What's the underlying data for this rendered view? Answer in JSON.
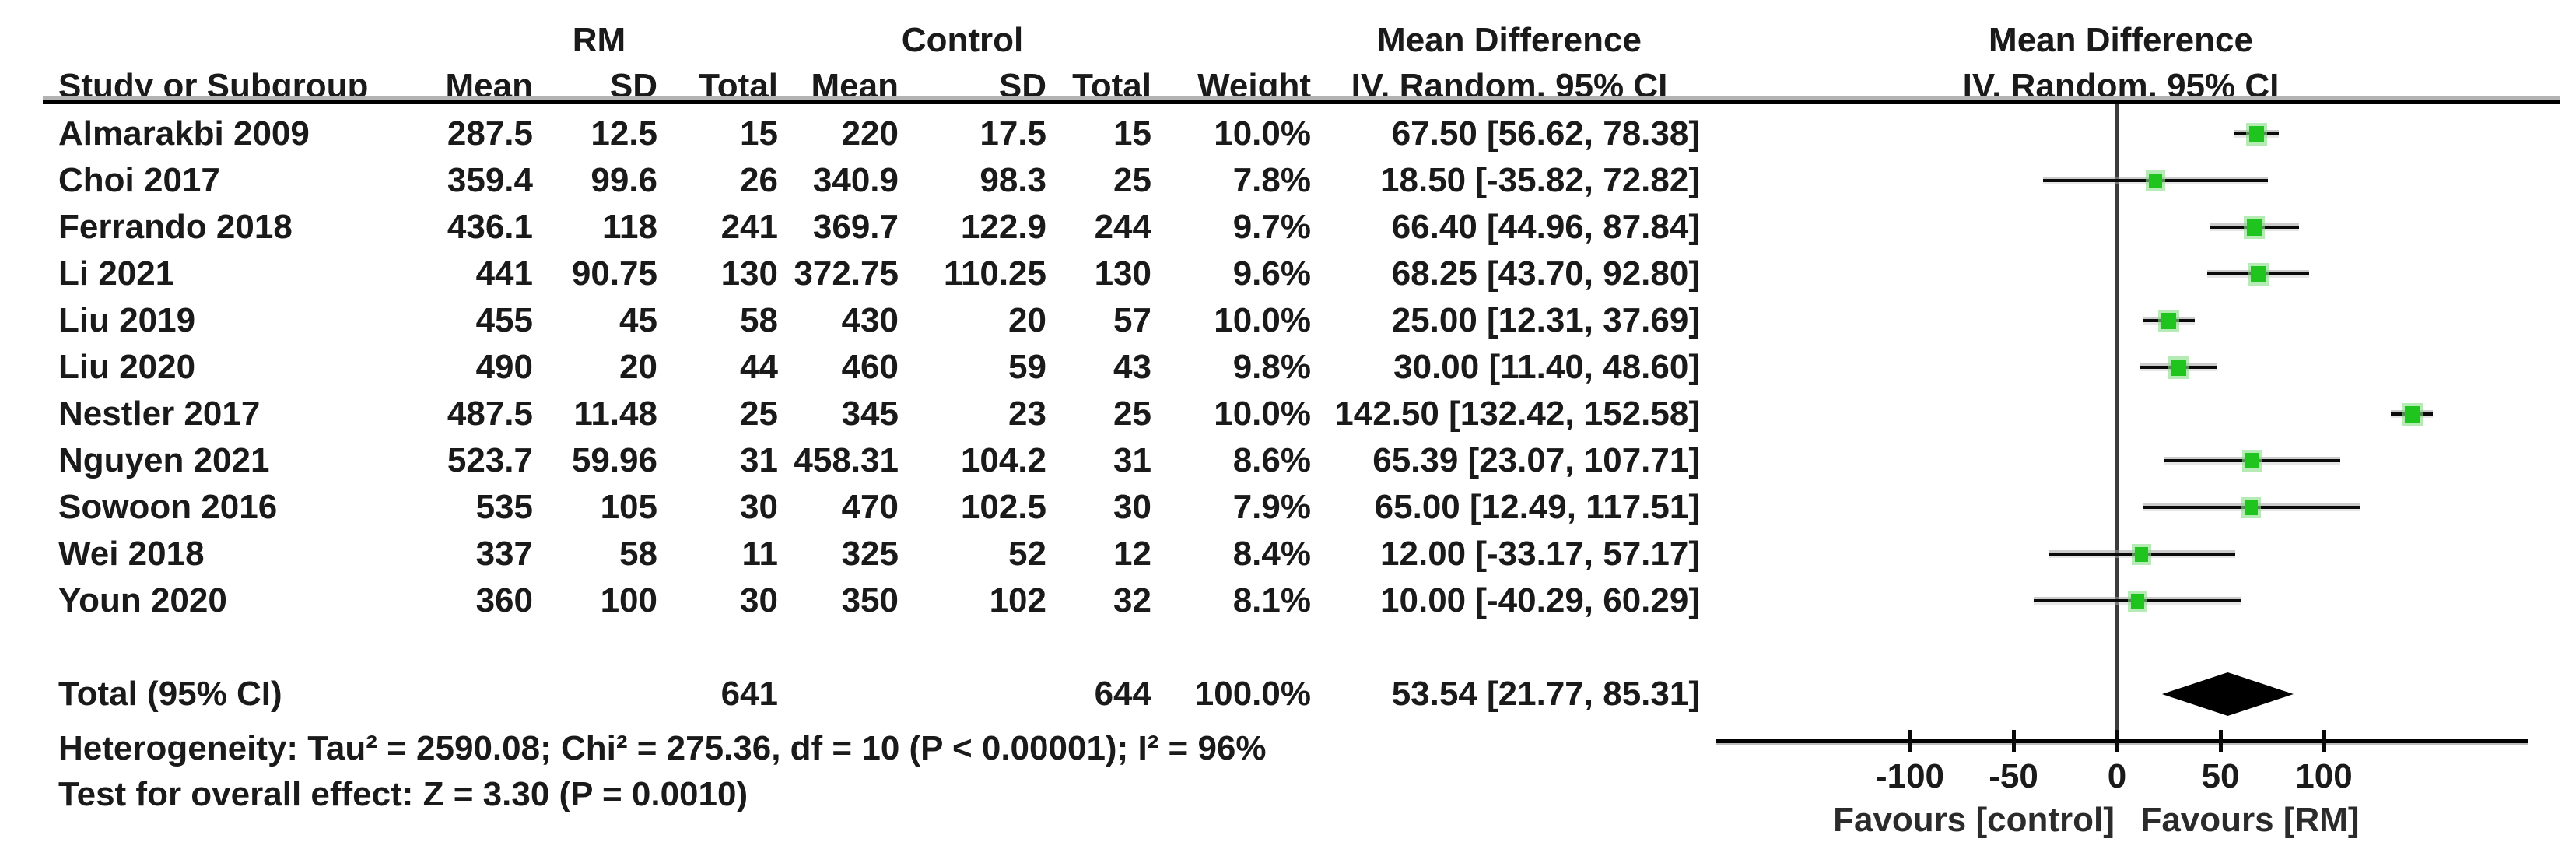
{
  "header": {
    "group1_label": "RM",
    "group2_label": "Control",
    "study_col": "Study or Subgroup",
    "mean_col": "Mean",
    "sd_col": "SD",
    "total_col": "Total",
    "weight_col": "Weight",
    "effect_col_title": "Mean Difference",
    "effect_col_subtitle": "IV, Random, 95% CI",
    "plot_col_title": "Mean Difference",
    "plot_col_subtitle": "IV, Random, 95% CI"
  },
  "footer": {
    "heterogeneity": "Heterogeneity: Tau² = 2590.08; Chi² = 275.36, df = 10 (P < 0.00001); I² = 96%",
    "overall_effect": "Test for overall effect: Z = 3.30 (P = 0.0010)"
  },
  "chart_data": {
    "type": "forest",
    "effect_measure": "Mean Difference",
    "model": "IV, Random, 95% CI",
    "studies": [
      {
        "name": "Almarakbi 2009",
        "rm_mean": "287.5",
        "rm_sd": "12.5",
        "rm_total": "15",
        "c_mean": "220",
        "c_sd": "17.5",
        "c_total": "15",
        "weight": "10.0%",
        "weight_pct": 10.0,
        "ci_text": "67.50 [56.62, 78.38]",
        "est": 67.5,
        "lo": 56.62,
        "hi": 78.38
      },
      {
        "name": "Choi 2017",
        "rm_mean": "359.4",
        "rm_sd": "99.6",
        "rm_total": "26",
        "c_mean": "340.9",
        "c_sd": "98.3",
        "c_total": "25",
        "weight": "7.8%",
        "weight_pct": 7.8,
        "ci_text": "18.50 [-35.82, 72.82]",
        "est": 18.5,
        "lo": -35.82,
        "hi": 72.82
      },
      {
        "name": "Ferrando 2018",
        "rm_mean": "436.1",
        "rm_sd": "118",
        "rm_total": "241",
        "c_mean": "369.7",
        "c_sd": "122.9",
        "c_total": "244",
        "weight": "9.7%",
        "weight_pct": 9.7,
        "ci_text": "66.40 [44.96, 87.84]",
        "est": 66.4,
        "lo": 44.96,
        "hi": 87.84
      },
      {
        "name": "Li 2021",
        "rm_mean": "441",
        "rm_sd": "90.75",
        "rm_total": "130",
        "c_mean": "372.75",
        "c_sd": "110.25",
        "c_total": "130",
        "weight": "9.6%",
        "weight_pct": 9.6,
        "ci_text": "68.25 [43.70, 92.80]",
        "est": 68.25,
        "lo": 43.7,
        "hi": 92.8
      },
      {
        "name": "Liu 2019",
        "rm_mean": "455",
        "rm_sd": "45",
        "rm_total": "58",
        "c_mean": "430",
        "c_sd": "20",
        "c_total": "57",
        "weight": "10.0%",
        "weight_pct": 10.0,
        "ci_text": "25.00 [12.31, 37.69]",
        "est": 25.0,
        "lo": 12.31,
        "hi": 37.69
      },
      {
        "name": "Liu 2020",
        "rm_mean": "490",
        "rm_sd": "20",
        "rm_total": "44",
        "c_mean": "460",
        "c_sd": "59",
        "c_total": "43",
        "weight": "9.8%",
        "weight_pct": 9.8,
        "ci_text": "30.00 [11.40, 48.60]",
        "est": 30.0,
        "lo": 11.4,
        "hi": 48.6
      },
      {
        "name": "Nestler 2017",
        "rm_mean": "487.5",
        "rm_sd": "11.48",
        "rm_total": "25",
        "c_mean": "345",
        "c_sd": "23",
        "c_total": "25",
        "weight": "10.0%",
        "weight_pct": 10.0,
        "ci_text": "142.50 [132.42, 152.58]",
        "est": 142.5,
        "lo": 132.42,
        "hi": 152.58
      },
      {
        "name": "Nguyen 2021",
        "rm_mean": "523.7",
        "rm_sd": "59.96",
        "rm_total": "31",
        "c_mean": "458.31",
        "c_sd": "104.2",
        "c_total": "31",
        "weight": "8.6%",
        "weight_pct": 8.6,
        "ci_text": "65.39 [23.07, 107.71]",
        "est": 65.39,
        "lo": 23.07,
        "hi": 107.71
      },
      {
        "name": "Sowoon 2016",
        "rm_mean": "535",
        "rm_sd": "105",
        "rm_total": "30",
        "c_mean": "470",
        "c_sd": "102.5",
        "c_total": "30",
        "weight": "7.9%",
        "weight_pct": 7.9,
        "ci_text": "65.00 [12.49, 117.51]",
        "est": 65.0,
        "lo": 12.49,
        "hi": 117.51
      },
      {
        "name": "Wei 2018",
        "rm_mean": "337",
        "rm_sd": "58",
        "rm_total": "11",
        "c_mean": "325",
        "c_sd": "52",
        "c_total": "12",
        "weight": "8.4%",
        "weight_pct": 8.4,
        "ci_text": "12.00 [-33.17, 57.17]",
        "est": 12.0,
        "lo": -33.17,
        "hi": 57.17
      },
      {
        "name": "Youn 2020",
        "rm_mean": "360",
        "rm_sd": "100",
        "rm_total": "30",
        "c_mean": "350",
        "c_sd": "102",
        "c_total": "32",
        "weight": "8.1%",
        "weight_pct": 8.1,
        "ci_text": "10.00 [-40.29, 60.29]",
        "est": 10.0,
        "lo": -40.29,
        "hi": 60.29
      }
    ],
    "total": {
      "label": "Total (95% CI)",
      "rm_total": "641",
      "c_total": "644",
      "weight": "100.0%",
      "weight_pct": 100.0,
      "ci_text": "53.54 [21.77, 85.31]",
      "est": 53.54,
      "lo": 21.77,
      "hi": 85.31
    },
    "axis": {
      "ticks": [
        -100,
        -50,
        0,
        50,
        100
      ],
      "tick_labels": [
        "-100",
        "-50",
        "0",
        "50",
        "100"
      ],
      "xlim": [
        -193,
        198
      ],
      "label_left": "Favours [control]",
      "label_right": "Favours [RM]"
    },
    "colors": {
      "marker_green": "#1fc41f",
      "marker_halo": "#86dd86",
      "diamond": "#000000",
      "line": "#0a0a0a"
    }
  }
}
